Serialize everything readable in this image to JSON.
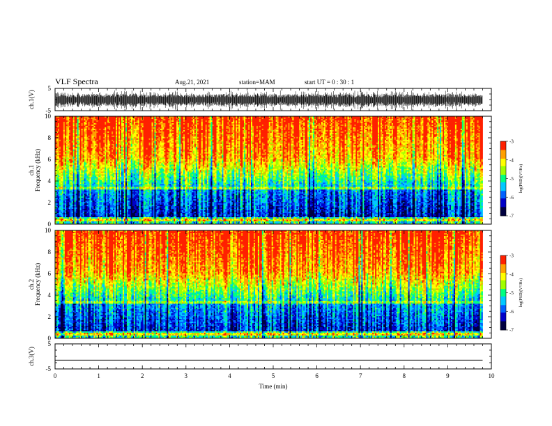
{
  "header": {
    "title": "VLF Spectra",
    "date": "Aug.21, 2021",
    "station": "station=MAM",
    "start": "start  UT =   0  : 30 : 1"
  },
  "colors": {
    "colormap": [
      "#000040",
      "#0000c8",
      "#0060ff",
      "#00c8ff",
      "#00ff80",
      "#a0ff00",
      "#ffff00",
      "#ffa000",
      "#ff2000"
    ],
    "trace": "#000000",
    "frame": "#000000"
  },
  "chart_data": [
    {
      "type": "line",
      "name": "waveform-ch1",
      "ylabel": "ch.1(V)",
      "ylim": [
        -5,
        5
      ],
      "yticks": [
        "5",
        "-5"
      ],
      "xlim": [
        0,
        10
      ]
    },
    {
      "type": "heatmap",
      "name": "spectrogram-ch1",
      "ylabel_line1": "ch.1",
      "ylabel_line2": "Frequency (kHz)",
      "ylim": [
        0,
        10
      ],
      "yticks": [
        "0",
        "2",
        "4",
        "6",
        "8",
        "10"
      ],
      "xlim": [
        0,
        10
      ],
      "data_end_min": 9.8,
      "colorbar": {
        "label": "log(PSD)(V²/Hz)",
        "range": [
          -7,
          -3
        ],
        "ticks": [
          "-3",
          "-4",
          "-5",
          "-6",
          "-7"
        ]
      }
    },
    {
      "type": "heatmap",
      "name": "spectrogram-ch2",
      "ylabel_line1": "ch.2",
      "ylabel_line2": "Frequency (kHz)",
      "ylim": [
        0,
        10
      ],
      "yticks": [
        "0",
        "2",
        "4",
        "6",
        "8",
        "10"
      ],
      "xlim": [
        0,
        10
      ],
      "data_end_min": 9.8,
      "colorbar": {
        "label": "log(PSD)(V²/Hz)",
        "range": [
          -7,
          -3
        ],
        "ticks": [
          "-3",
          "-4",
          "-5",
          "-6",
          "-7"
        ]
      }
    },
    {
      "type": "line",
      "name": "waveform-ch3",
      "ylabel": "ch.3(V)",
      "ylim": [
        -5,
        5
      ],
      "yticks": [
        "5",
        "-5"
      ],
      "xlim": [
        0,
        10
      ],
      "x": [
        0,
        9.8
      ],
      "y": [
        -1.5,
        -1.5
      ]
    }
  ],
  "xaxis": {
    "label": "Time  (min)",
    "ticks": [
      "0",
      "1",
      "2",
      "3",
      "4",
      "5",
      "6",
      "7",
      "8",
      "9",
      "10"
    ]
  }
}
